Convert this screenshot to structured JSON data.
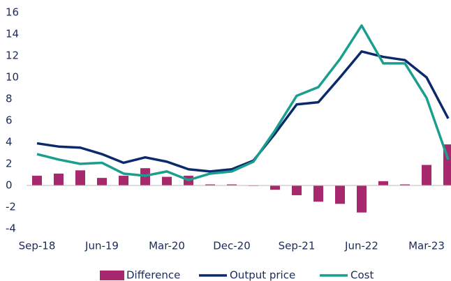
{
  "chart_data": {
    "type": "combo",
    "categories": [
      "Sep-18",
      null,
      null,
      "Jun-19",
      null,
      null,
      "Mar-20",
      null,
      null,
      "Dec-20",
      null,
      null,
      "Sep-21",
      null,
      null,
      "Jun-22",
      null,
      null,
      "Mar-23",
      null
    ],
    "series": [
      {
        "name": "Difference",
        "type": "bar",
        "color": "#a8286e",
        "values": [
          0.9,
          1.1,
          1.4,
          0.7,
          0.9,
          1.6,
          0.8,
          0.9,
          0.1,
          0.1,
          -0.05,
          -0.4,
          -0.9,
          -1.5,
          -1.7,
          -2.5,
          0.4,
          0.1,
          1.9,
          3.8
        ]
      },
      {
        "name": "Output price",
        "type": "line",
        "color": "#0b2a6b",
        "values": [
          3.9,
          3.6,
          3.5,
          2.9,
          2.1,
          2.6,
          2.2,
          1.5,
          1.3,
          1.5,
          2.3,
          4.8,
          7.5,
          7.7,
          10.0,
          12.4,
          11.9,
          11.6,
          10.0,
          6.2
        ]
      },
      {
        "name": "Cost",
        "type": "line",
        "color": "#1a9e8f",
        "values": [
          2.9,
          2.4,
          2.0,
          2.1,
          1.1,
          0.9,
          1.3,
          0.5,
          1.1,
          1.3,
          2.2,
          5.1,
          8.3,
          9.1,
          11.7,
          14.8,
          11.3,
          11.3,
          8.1,
          2.4
        ]
      }
    ],
    "ylim": [
      -4,
      16
    ],
    "yticks": [
      -4,
      -2,
      0,
      2,
      4,
      6,
      8,
      10,
      12,
      14,
      16
    ],
    "grid": false
  }
}
